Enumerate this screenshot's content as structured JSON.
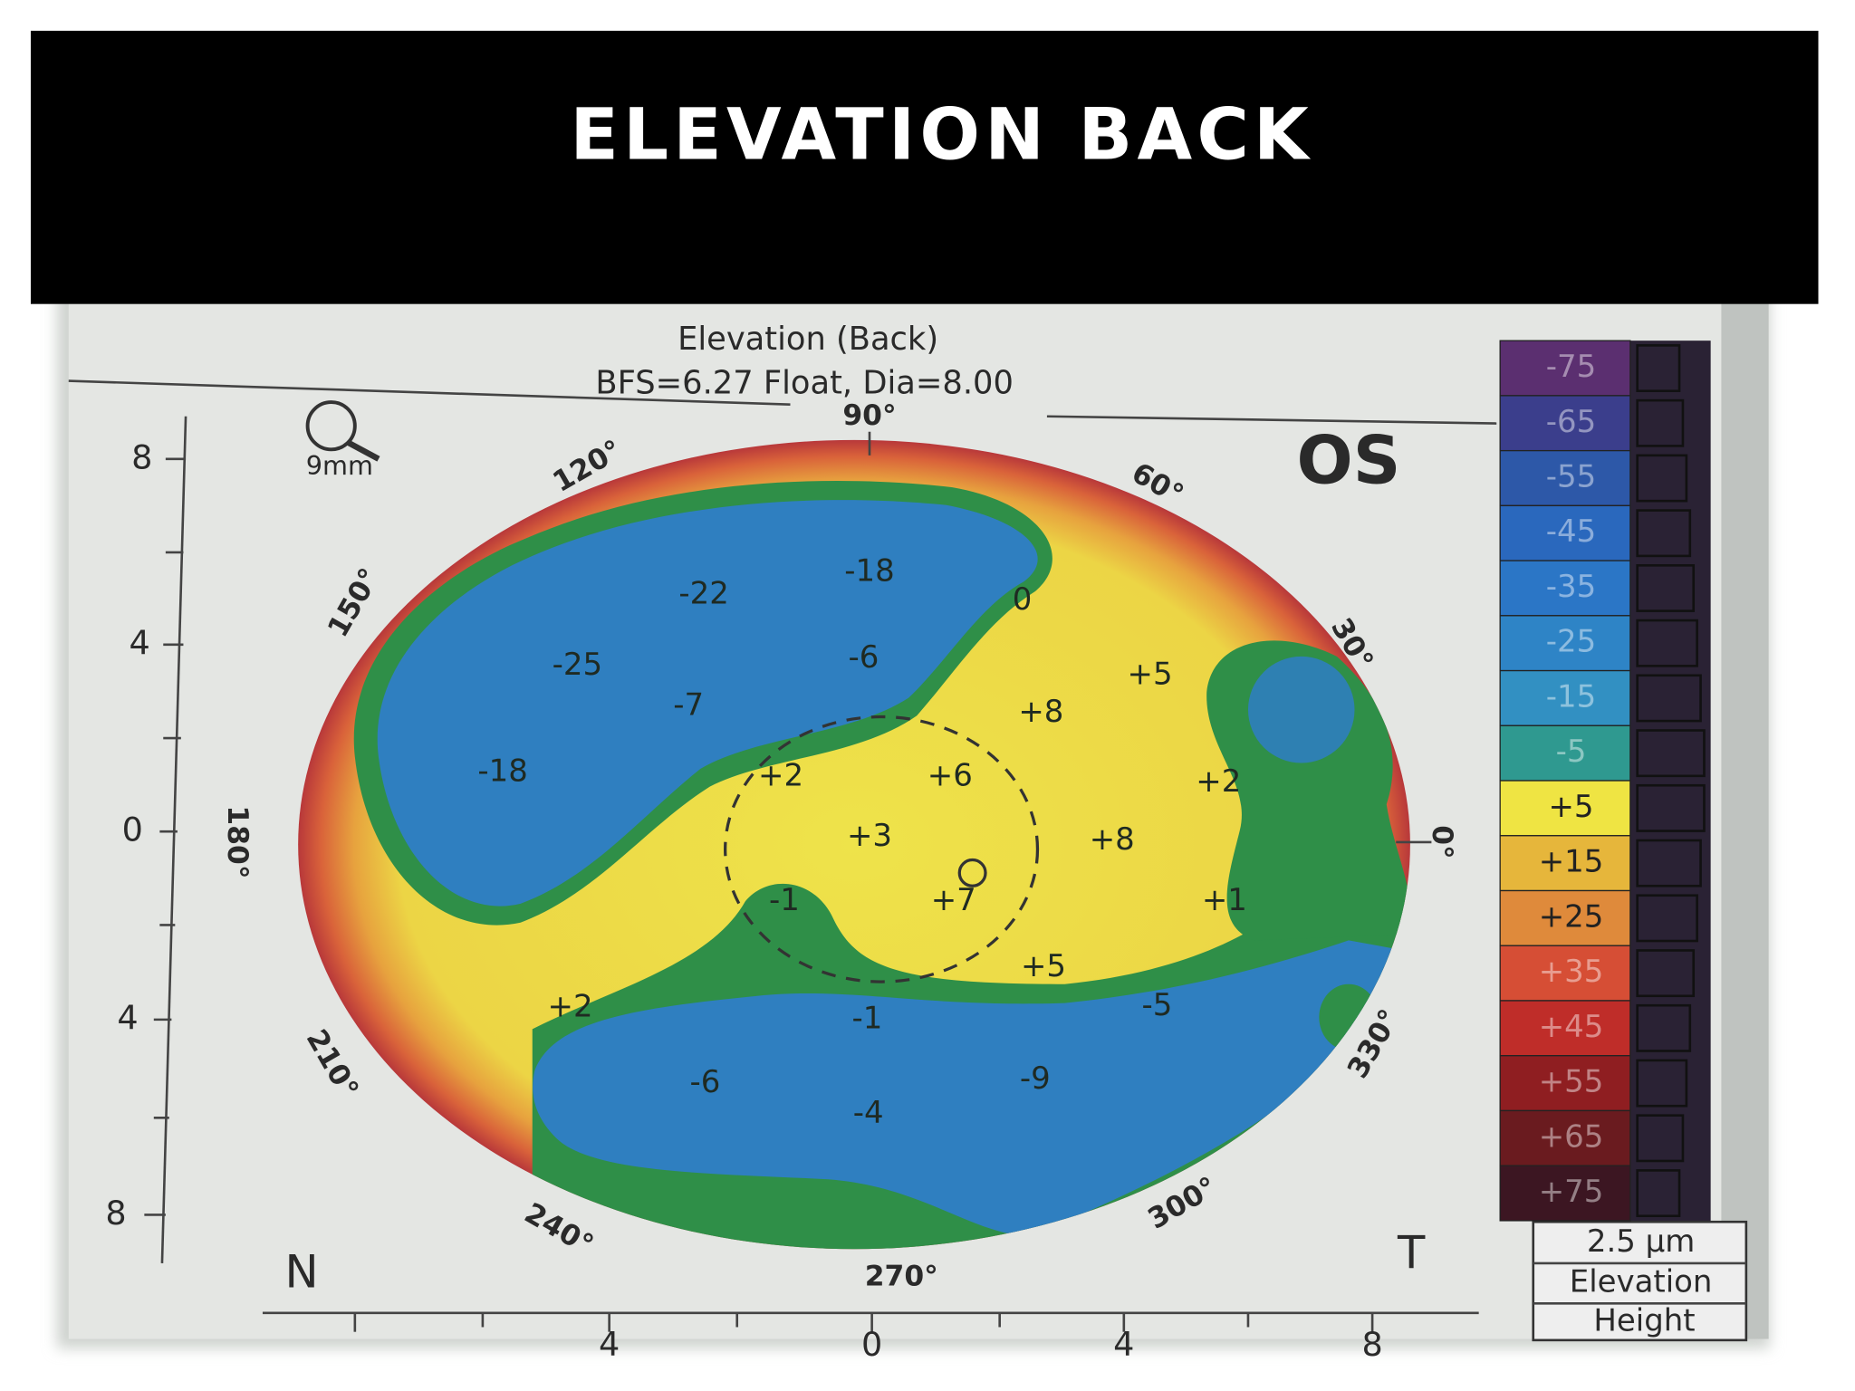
{
  "header": {
    "title": "ELEVATION BACK"
  },
  "map": {
    "title": "Elevation (Back)",
    "subtitle": "BFS=6.27 Float, Dia=8.00",
    "zoom": "9mm",
    "eye": "OS",
    "nasal": "N",
    "temporal": "T",
    "y_axis_labels": [
      "8",
      "4",
      "0",
      "4",
      "8"
    ],
    "x_axis_labels": [
      "4",
      "0",
      "4",
      "8"
    ],
    "angles": [
      "90°",
      "120°",
      "60°",
      "150°",
      "30°",
      "180°",
      "0°",
      "210°",
      "330°",
      "240°",
      "300°",
      "270°"
    ],
    "elevations": [
      "-18",
      "-22",
      "0",
      "-25",
      "-6",
      "+5",
      "-7",
      "+8",
      "-18",
      "+2",
      "+6",
      "+2",
      "+3",
      "+8",
      "+7",
      "-1",
      "+1",
      "+5",
      "+2",
      "-5",
      "-1",
      "-6",
      "-9",
      "-4"
    ]
  },
  "scale": {
    "steps": [
      {
        "label": "-75",
        "color": "#5b2f70"
      },
      {
        "label": "-65",
        "color": "#3b3e8c"
      },
      {
        "label": "-55",
        "color": "#2d58a8"
      },
      {
        "label": "-45",
        "color": "#2a68bd"
      },
      {
        "label": "-35",
        "color": "#2b76c6"
      },
      {
        "label": "-25",
        "color": "#2e84c6"
      },
      {
        "label": "-15",
        "color": "#3290c2"
      },
      {
        "label": "-5",
        "color": "#2f9990"
      },
      {
        "label": "+5",
        "color": "#efe443"
      },
      {
        "label": "+15",
        "color": "#e6b63b"
      },
      {
        "label": "+25",
        "color": "#df8a3b"
      },
      {
        "label": "+35",
        "color": "#d64e35"
      },
      {
        "label": "+45",
        "color": "#bf2d29"
      },
      {
        "label": "+55",
        "color": "#8f1e21"
      },
      {
        "label": "+65",
        "color": "#6a1b1f"
      },
      {
        "label": "+75",
        "color": "#3c1622"
      }
    ],
    "step": "2.5 µm",
    "mode": "Elevation",
    "kind": "Height"
  }
}
